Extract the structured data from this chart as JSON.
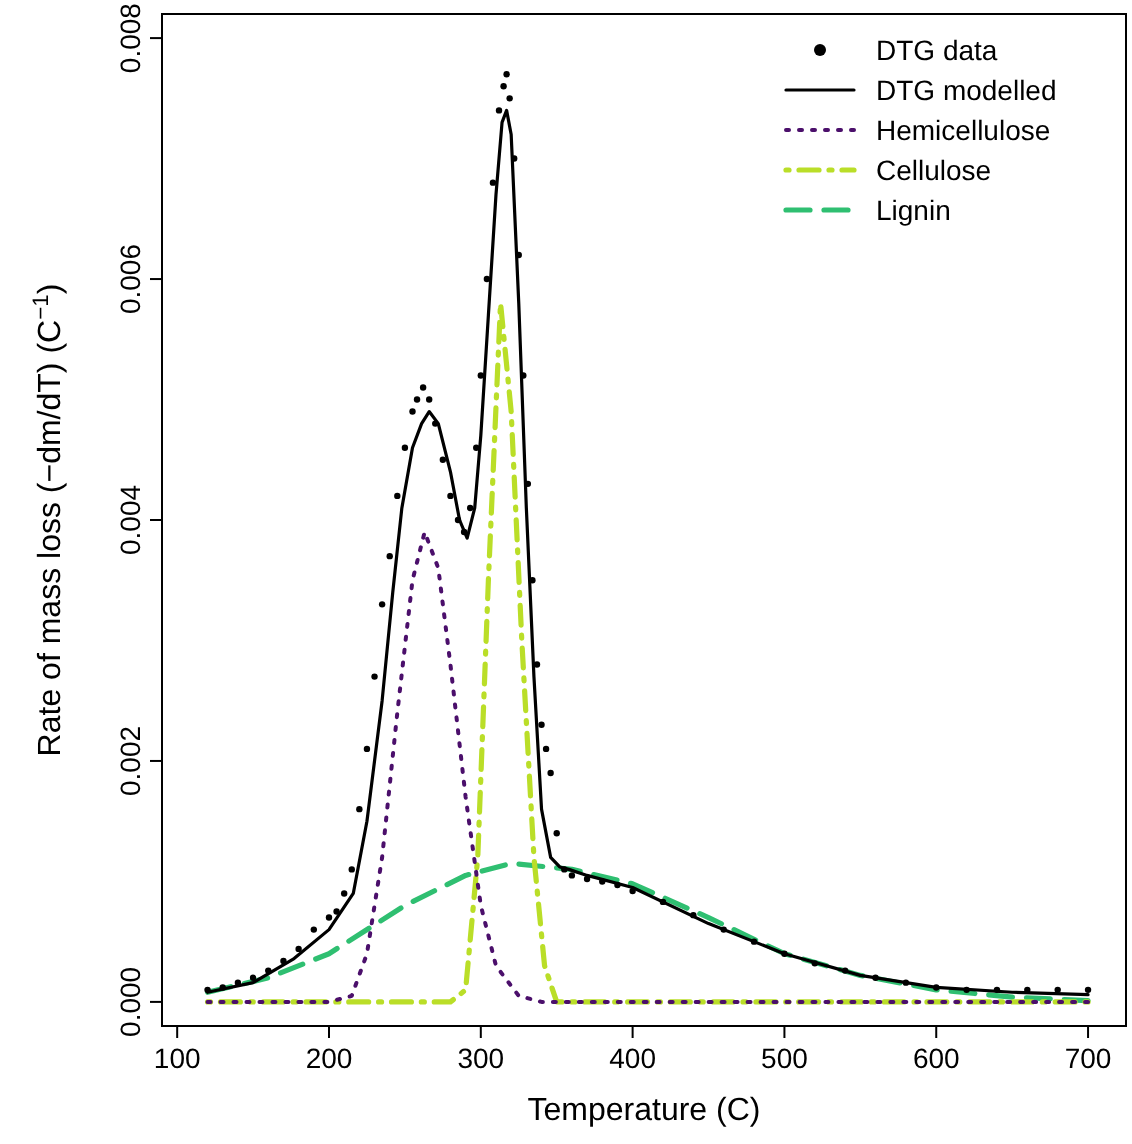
{
  "chart_data": {
    "type": "line",
    "xlabel": "Temperature (C)",
    "ylabel": "Rate of mass loss (−dm/dT) (C$^{−1}$)",
    "xlim": [
      90,
      725
    ],
    "ylim": [
      -0.0002,
      0.0082
    ],
    "xticks": [
      100,
      200,
      300,
      400,
      500,
      600,
      700
    ],
    "yticks": [
      {
        "value": 0,
        "label": "0.000"
      },
      {
        "value": 0.002,
        "label": "0.002"
      },
      {
        "value": 0.004,
        "label": "0.004"
      },
      {
        "value": 0.006,
        "label": "0.006"
      },
      {
        "value": 0.008,
        "label": "0.008"
      }
    ],
    "grid": false,
    "legend": "top right",
    "series": [
      {
        "name": "DTG data",
        "type": "scatter",
        "marker": "circle",
        "color": "#000000",
        "x": [
          120,
          130,
          140,
          150,
          160,
          170,
          180,
          190,
          200,
          205,
          210,
          215,
          220,
          225,
          230,
          235,
          240,
          245,
          250,
          255,
          258,
          262,
          266,
          270,
          275,
          280,
          285,
          289,
          293,
          297,
          300,
          304,
          308,
          312,
          315,
          317,
          319,
          322,
          325,
          328,
          331,
          334,
          337,
          340,
          343,
          346,
          350,
          355,
          360,
          370,
          380,
          390,
          400,
          420,
          440,
          460,
          480,
          500,
          520,
          540,
          560,
          580,
          600,
          620,
          640,
          660,
          680,
          700
        ],
        "values": [
          0.0001,
          0.00012,
          0.00016,
          0.0002,
          0.00026,
          0.00034,
          0.00044,
          0.0006,
          0.0007,
          0.00075,
          0.0009,
          0.0011,
          0.0016,
          0.0021,
          0.0027,
          0.0033,
          0.0037,
          0.0042,
          0.0046,
          0.0049,
          0.005,
          0.0051,
          0.005,
          0.0048,
          0.0045,
          0.0042,
          0.004,
          0.0039,
          0.0041,
          0.0046,
          0.0052,
          0.006,
          0.0068,
          0.0074,
          0.0076,
          0.0077,
          0.0075,
          0.007,
          0.0062,
          0.0052,
          0.0043,
          0.0035,
          0.0028,
          0.0023,
          0.0021,
          0.0019,
          0.0014,
          0.0011,
          0.00105,
          0.00102,
          0.001,
          0.00097,
          0.00092,
          0.00083,
          0.00072,
          0.0006,
          0.0005,
          0.0004,
          0.00032,
          0.00026,
          0.0002,
          0.00016,
          0.00012,
          0.0001,
          0.0001,
          0.0001,
          0.0001,
          0.0001
        ]
      },
      {
        "name": "DTG modelled",
        "line_style": "solid",
        "color": "#000000",
        "x": [
          120,
          150,
          177,
          200,
          216,
          225,
          235,
          242,
          248,
          255,
          261,
          266,
          272,
          280,
          286,
          291,
          296,
          300,
          305,
          310,
          314,
          317,
          320,
          325,
          330,
          335,
          340,
          346,
          352,
          358,
          370,
          400,
          450,
          500,
          550,
          600,
          650,
          700
        ],
        "values": [
          8e-05,
          0.00016,
          0.00036,
          0.0006,
          0.0009,
          0.0015,
          0.0025,
          0.0034,
          0.0041,
          0.0046,
          0.0048,
          0.0049,
          0.0048,
          0.0044,
          0.004,
          0.00385,
          0.0041,
          0.0047,
          0.0057,
          0.0067,
          0.0073,
          0.0074,
          0.0072,
          0.0058,
          0.0041,
          0.0027,
          0.0016,
          0.0012,
          0.00112,
          0.0011,
          0.00105,
          0.00095,
          0.00065,
          0.0004,
          0.00022,
          0.00012,
          8e-05,
          6e-05
        ]
      },
      {
        "name": "Hemicellulose",
        "line_style": "dotted",
        "color": "#4b0f6b",
        "x": [
          120,
          200,
          215,
          225,
          235,
          245,
          255,
          263,
          272,
          280,
          290,
          300,
          310,
          325,
          340,
          700
        ],
        "values": [
          0,
          0,
          5e-05,
          0.0004,
          0.0012,
          0.0024,
          0.0035,
          0.0039,
          0.0036,
          0.0028,
          0.0017,
          0.0008,
          0.0003,
          5e-05,
          0,
          0
        ]
      },
      {
        "name": "Cellulose",
        "line_style": "dashdot",
        "color": "#bade28",
        "x": [
          120,
          280,
          290,
          298,
          305,
          313,
          320,
          327,
          335,
          342,
          350,
          700
        ],
        "values": [
          0,
          0,
          0.0001,
          0.0012,
          0.0035,
          0.0058,
          0.0049,
          0.003,
          0.0012,
          0.0003,
          0,
          0
        ]
      },
      {
        "name": "Lignin",
        "line_style": "dashed",
        "color": "#2fbf71",
        "x": [
          120,
          160,
          200,
          250,
          290,
          320,
          360,
          400,
          450,
          500,
          550,
          600,
          650,
          700
        ],
        "values": [
          8e-05,
          0.0002,
          0.0004,
          0.0008,
          0.00105,
          0.00115,
          0.0011,
          0.00098,
          0.0007,
          0.0004,
          0.00022,
          0.0001,
          4e-05,
          1e-05
        ]
      }
    ]
  }
}
